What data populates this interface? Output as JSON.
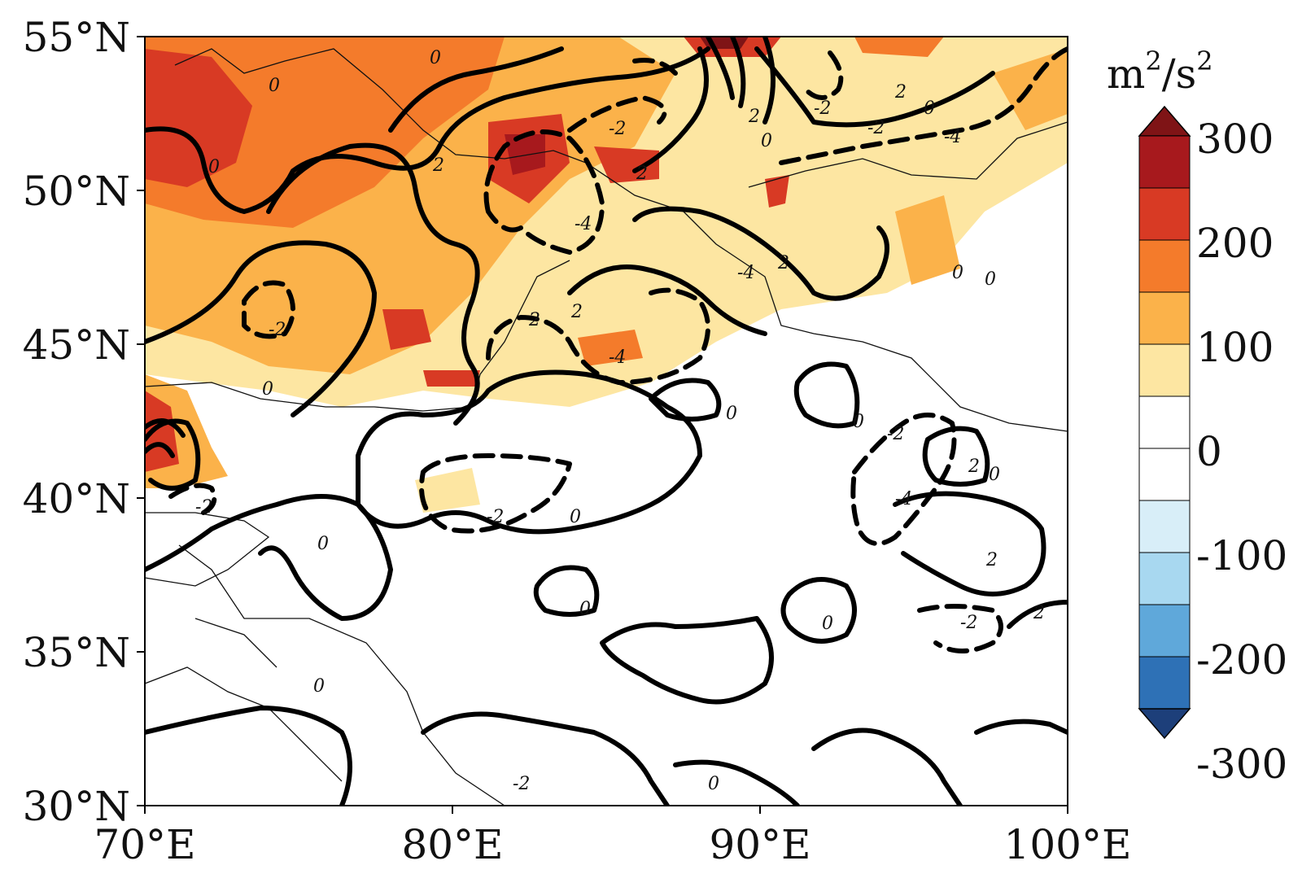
{
  "map": {
    "lat_labels": [
      "55°N",
      "50°N",
      "45°N",
      "40°N",
      "35°N",
      "30°N"
    ],
    "lon_labels": [
      "70°E",
      "80°E",
      "90°E",
      "100°E"
    ],
    "lon_range": [
      70,
      100
    ],
    "lat_range": [
      30,
      55
    ]
  },
  "colorbar": {
    "unit_main": "m",
    "unit_sup1": "2",
    "unit_mid": "/s",
    "unit_sup2": "2",
    "tick_labels": [
      "300",
      "200",
      "100",
      "0",
      "-100",
      "-200",
      "-300"
    ],
    "colors": [
      "#7f1416",
      "#a7191d",
      "#d83a24",
      "#f47b2b",
      "#fbb24a",
      "#fde6a2",
      "#ffffff",
      "#ffffff",
      "#d8eef8",
      "#a8d8f0",
      "#5fa8da",
      "#2e71b6",
      "#1d3f7a"
    ],
    "extend": "both"
  },
  "contour_labels": [
    "0",
    "0",
    "0",
    "2",
    "-2",
    "-2",
    "2",
    "-4",
    "2",
    "0",
    "-4",
    "2",
    "2",
    "-2",
    "0",
    "-2",
    "-4",
    "2",
    "0",
    "0",
    "0",
    "0",
    "2",
    "0",
    "-2",
    "-4",
    "2",
    "0",
    "-2",
    "0",
    "0",
    "2",
    "0",
    "0",
    "-4",
    "-2",
    "0",
    "-2",
    "2",
    "0",
    "-2"
  ]
}
